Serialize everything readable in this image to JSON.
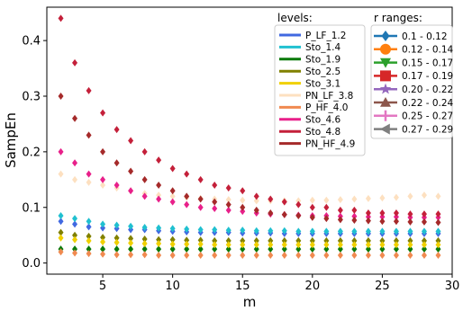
{
  "chart_data": {
    "type": "scatter",
    "xlabel": "m",
    "ylabel": "SampEn",
    "xlim": [
      1,
      30
    ],
    "ylim": [
      -0.02,
      0.46
    ],
    "x_ticks": [
      5,
      10,
      15,
      20,
      25,
      30
    ],
    "y_ticks": [
      0.0,
      0.1,
      0.2,
      0.3,
      0.4
    ],
    "x_tick_labels": [
      "5",
      "10",
      "15",
      "20",
      "25",
      "30"
    ],
    "y_tick_labels": [
      "0.0",
      "0.1",
      "0.2",
      "0.3",
      "0.4"
    ],
    "grid": false,
    "x": [
      2,
      3,
      4,
      5,
      6,
      7,
      8,
      9,
      10,
      11,
      12,
      13,
      14,
      15,
      16,
      17,
      18,
      19,
      20,
      21,
      22,
      23,
      24,
      25,
      26,
      27,
      28,
      29
    ],
    "legend_levels": {
      "title": "levels:",
      "placement": "top-right",
      "entries": [
        {
          "label": "P_LF_1.2",
          "color": "#4169e1"
        },
        {
          "label": "Sto_1.4",
          "color": "#20c0d0"
        },
        {
          "label": "Sto_1.9",
          "color": "#0a7a0a"
        },
        {
          "label": "Sto_2.5",
          "color": "#808000"
        },
        {
          "label": "Sto_3.1",
          "color": "#f0d000"
        },
        {
          "label": "PN_LF_3.8",
          "color": "#fde0c0"
        },
        {
          "label": "P_HF_4.0",
          "color": "#f08a50"
        },
        {
          "label": "Sto_4.6",
          "color": "#e8208a"
        },
        {
          "label": "Sto_4.8",
          "color": "#c4203a"
        },
        {
          "label": "PN_HF_4.9",
          "color": "#a52a2a"
        }
      ]
    },
    "legend_r": {
      "title": "r ranges:",
      "placement": "top-right",
      "entries": [
        {
          "label": "0.1 - 0.12",
          "marker": "diamond",
          "color": "#1f77b4"
        },
        {
          "label": "0.12 - 0.14",
          "marker": "circle",
          "color": "#ff7f0e"
        },
        {
          "label": "0.15 - 0.17",
          "marker": "triangle-down",
          "color": "#2ca02c"
        },
        {
          "label": "0.17 - 0.19",
          "marker": "square",
          "color": "#d62728"
        },
        {
          "label": "0.20 - 0.22",
          "marker": "star",
          "color": "#9467bd"
        },
        {
          "label": "0.22 - 0.24",
          "marker": "triangle-up",
          "color": "#8c564b"
        },
        {
          "label": "0.25 - 0.27",
          "marker": "plus",
          "color": "#e377c2"
        },
        {
          "label": "0.27 - 0.29",
          "marker": "triangle-left",
          "color": "#7f7f7f"
        }
      ]
    },
    "series": [
      {
        "name": "P_LF_1.2",
        "color": "#4169e1",
        "values": [
          0.075,
          0.07,
          0.065,
          0.063,
          0.062,
          0.06,
          0.06,
          0.058,
          0.057,
          0.056,
          0.055,
          0.055,
          0.055,
          0.054,
          0.054,
          0.054,
          0.053,
          0.053,
          0.053,
          0.053,
          0.053,
          0.053,
          0.053,
          0.053,
          0.053,
          0.053,
          0.053,
          0.053
        ]
      },
      {
        "name": "Sto_1.4",
        "color": "#20c0d0",
        "values": [
          0.085,
          0.08,
          0.075,
          0.07,
          0.068,
          0.066,
          0.064,
          0.063,
          0.062,
          0.061,
          0.06,
          0.06,
          0.059,
          0.059,
          0.058,
          0.058,
          0.058,
          0.057,
          0.057,
          0.057,
          0.057,
          0.057,
          0.057,
          0.057,
          0.057,
          0.057,
          0.057,
          0.057
        ]
      },
      {
        "name": "Sto_1.9",
        "color": "#0a7a0a",
        "values": [
          0.025,
          0.025,
          0.025,
          0.025,
          0.025,
          0.025,
          0.025,
          0.025,
          0.025,
          0.025,
          0.025,
          0.025,
          0.025,
          0.025,
          0.025,
          0.025,
          0.025,
          0.025,
          0.025,
          0.025,
          0.025,
          0.025,
          0.025,
          0.025,
          0.025,
          0.025,
          0.025,
          0.025
        ]
      },
      {
        "name": "Sto_2.5",
        "color": "#808000",
        "values": [
          0.055,
          0.05,
          0.048,
          0.046,
          0.045,
          0.044,
          0.043,
          0.042,
          0.042,
          0.041,
          0.041,
          0.04,
          0.04,
          0.04,
          0.04,
          0.04,
          0.04,
          0.04,
          0.04,
          0.04,
          0.04,
          0.04,
          0.04,
          0.04,
          0.04,
          0.04,
          0.04,
          0.04
        ]
      },
      {
        "name": "Sto_3.1",
        "color": "#f0d000",
        "values": [
          0.045,
          0.042,
          0.04,
          0.038,
          0.037,
          0.036,
          0.035,
          0.035,
          0.034,
          0.034,
          0.034,
          0.033,
          0.033,
          0.033,
          0.033,
          0.033,
          0.033,
          0.033,
          0.033,
          0.033,
          0.033,
          0.033,
          0.033,
          0.033,
          0.033,
          0.033,
          0.033,
          0.033
        ]
      },
      {
        "name": "PN_LF_3.8",
        "color": "#fde0c0",
        "values": [
          0.16,
          0.15,
          0.145,
          0.14,
          0.135,
          0.13,
          0.125,
          0.122,
          0.12,
          0.118,
          0.116,
          0.115,
          0.114,
          0.113,
          0.112,
          0.112,
          0.112,
          0.112,
          0.113,
          0.113,
          0.114,
          0.115,
          0.116,
          0.117,
          0.118,
          0.12,
          0.122,
          0.12
        ]
      },
      {
        "name": "P_HF_4.0",
        "color": "#f08a50",
        "values": [
          0.02,
          0.018,
          0.017,
          0.016,
          0.015,
          0.015,
          0.015,
          0.014,
          0.014,
          0.014,
          0.014,
          0.014,
          0.014,
          0.014,
          0.014,
          0.014,
          0.014,
          0.014,
          0.014,
          0.014,
          0.014,
          0.014,
          0.014,
          0.014,
          0.014,
          0.014,
          0.014,
          0.014
        ]
      },
      {
        "name": "Sto_4.6",
        "color": "#e8208a",
        "values": [
          0.2,
          0.18,
          0.16,
          0.15,
          0.14,
          0.13,
          0.12,
          0.115,
          0.11,
          0.105,
          0.1,
          0.098,
          0.095,
          0.093,
          0.09,
          0.088,
          0.087,
          0.086,
          0.085,
          0.085,
          0.084,
          0.084,
          0.083,
          0.083,
          0.083,
          0.082,
          0.082,
          0.082
        ]
      },
      {
        "name": "Sto_4.8",
        "color": "#c4203a",
        "values": [
          0.44,
          0.36,
          0.31,
          0.27,
          0.24,
          0.22,
          0.2,
          0.185,
          0.17,
          0.16,
          0.15,
          0.14,
          0.135,
          0.13,
          0.12,
          0.115,
          0.11,
          0.105,
          0.1,
          0.1,
          0.095,
          0.095,
          0.09,
          0.09,
          0.09,
          0.088,
          0.088,
          0.088
        ]
      },
      {
        "name": "PN_HF_4.9",
        "color": "#a52a2a",
        "values": [
          0.3,
          0.26,
          0.23,
          0.2,
          0.18,
          0.165,
          0.15,
          0.14,
          0.13,
          0.12,
          0.115,
          0.11,
          0.105,
          0.1,
          0.095,
          0.09,
          0.087,
          0.085,
          0.082,
          0.08,
          0.078,
          0.077,
          0.076,
          0.075,
          0.075,
          0.074,
          0.074,
          0.073
        ]
      }
    ]
  }
}
